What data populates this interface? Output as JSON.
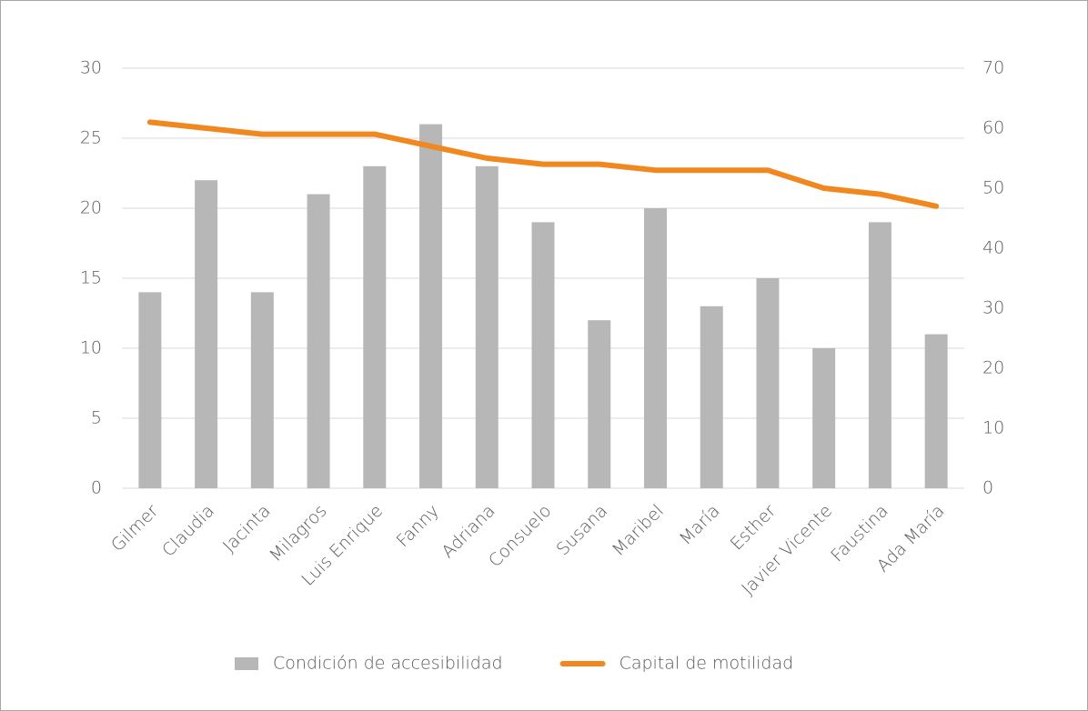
{
  "chart_data": {
    "type": "bar",
    "categories": [
      "Gilmer",
      "Claudia",
      "Jacinta",
      "Milagros",
      "Luis Enrique",
      "Fanny",
      "Adriana",
      "Consuelo",
      "Susana",
      "Maribel",
      "María",
      "Esther",
      "Javier Vicente",
      "Faustina",
      "Ada María"
    ],
    "series": [
      {
        "name": "Condición de accesibilidad",
        "type": "bar",
        "color": "#b7b7b7",
        "values": [
          14,
          22,
          14,
          21,
          23,
          26,
          23,
          19,
          12,
          20,
          13,
          15,
          10,
          19,
          11
        ]
      },
      {
        "name": "Capital de motilidad",
        "type": "line",
        "axis": "y2",
        "color": "#f0871f",
        "values": [
          61,
          60,
          59,
          59,
          59,
          57,
          55,
          54,
          54,
          53,
          53,
          53,
          50,
          49,
          47
        ]
      }
    ],
    "ylim": [
      0,
      30
    ],
    "yticks": [
      0,
      5,
      10,
      15,
      20,
      25,
      30
    ],
    "y2lim": [
      0,
      70
    ],
    "y2ticks": [
      0,
      10,
      20,
      30,
      40,
      50,
      60,
      70
    ],
    "grid": true,
    "legend": "bottom"
  }
}
